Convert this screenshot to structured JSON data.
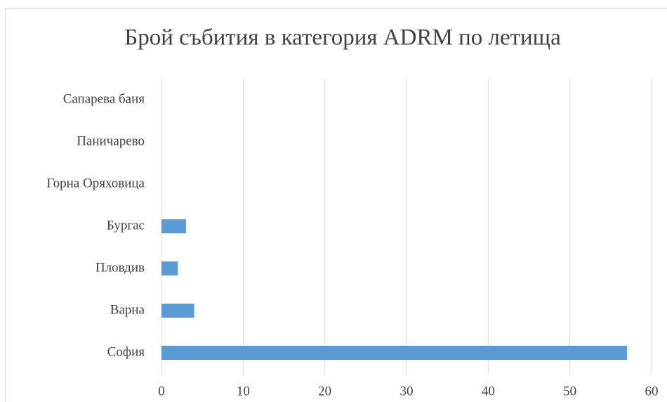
{
  "chart_data": {
    "type": "bar",
    "orientation": "horizontal",
    "title": "Брой събития в категория ADRM по летища",
    "categories": [
      "София",
      "Варна",
      "Пловдив",
      "Бургас",
      "Горна Оряховица",
      "Паничарево",
      "Сапарева баня"
    ],
    "values": [
      57,
      4,
      2,
      3,
      0,
      0,
      0
    ],
    "color": "#5b9bd5",
    "xlim": [
      0,
      60
    ],
    "xticks": [
      0,
      10,
      20,
      30,
      40,
      50,
      60
    ],
    "grid": true
  }
}
